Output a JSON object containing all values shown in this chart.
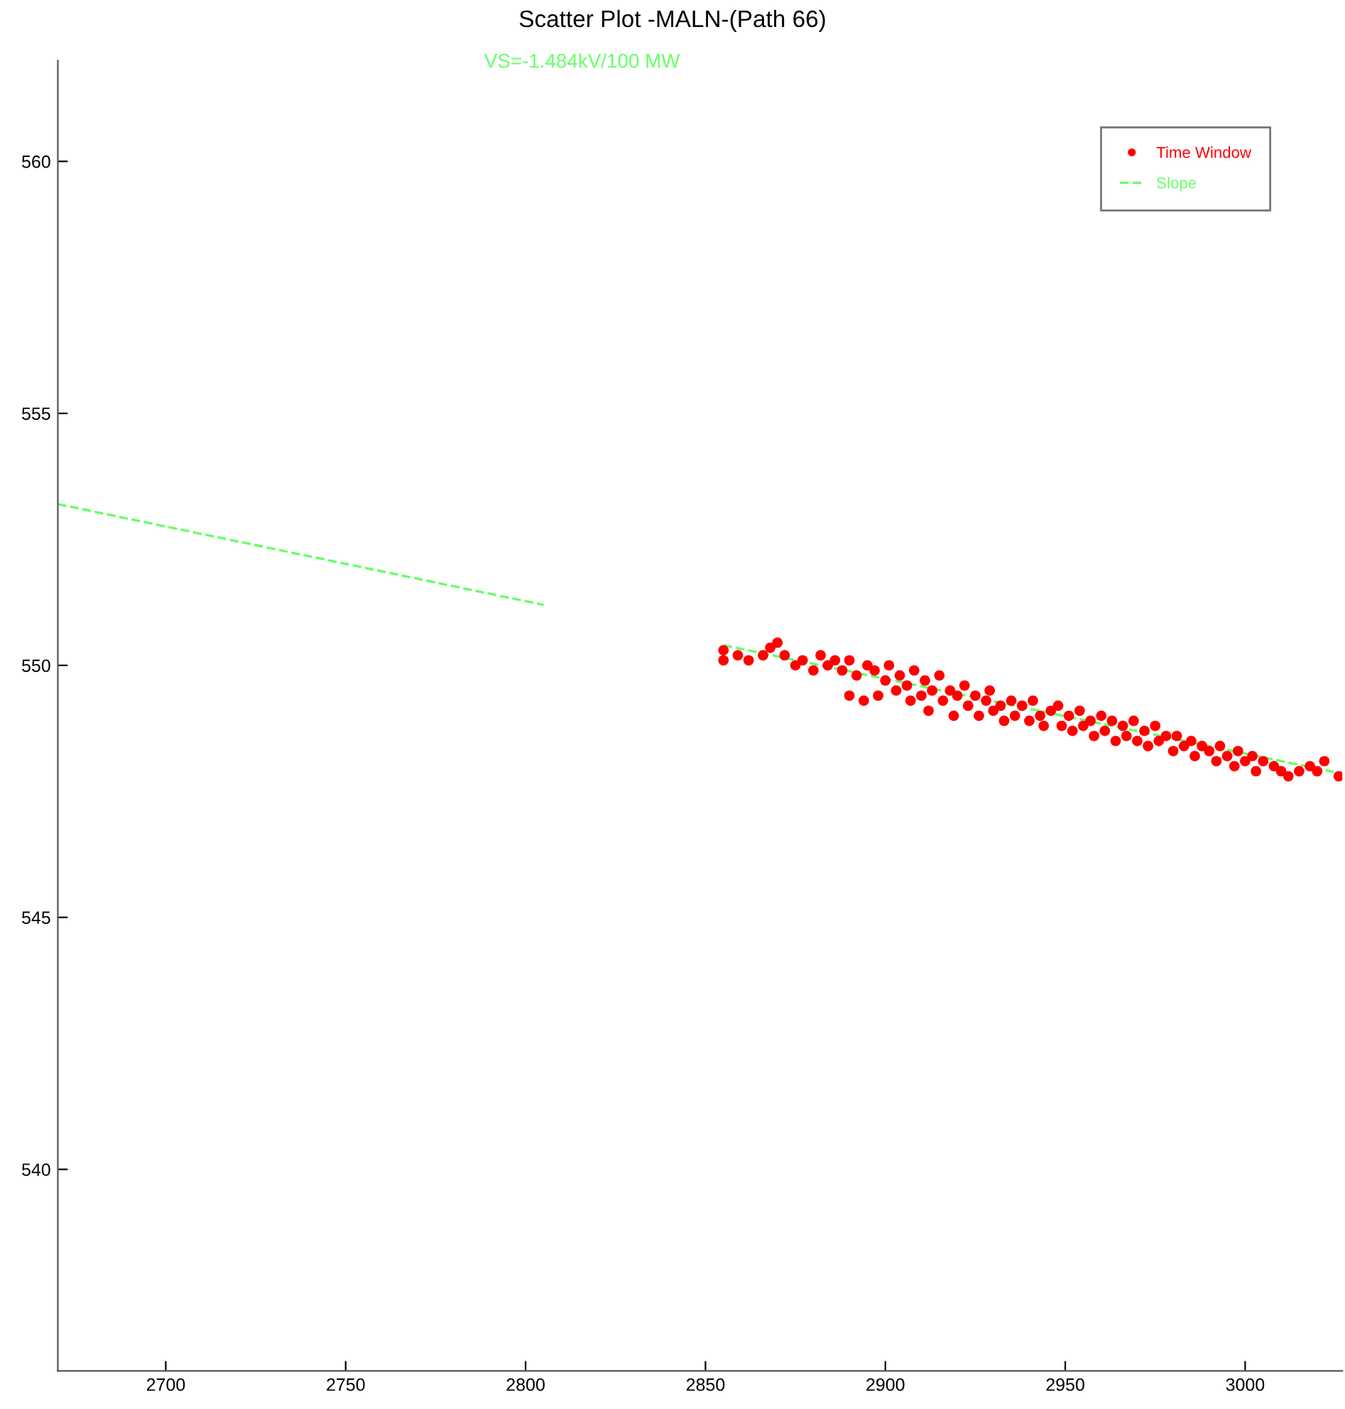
{
  "chart_data": {
    "type": "scatter",
    "title": "Scatter Plot -MALN-(Path 66)",
    "annotations": [
      "VS=-1.484kV/100 MW"
    ],
    "xlim": [
      2670,
      3027
    ],
    "ylim": [
      536,
      562
    ],
    "xticks": [
      2700,
      2750,
      2800,
      2850,
      2900,
      2950,
      3000
    ],
    "yticks": [
      540,
      545,
      550,
      555,
      560
    ],
    "grid": false,
    "legend": "top right",
    "series": [
      {
        "name": "Time Window",
        "color": "#ff0000",
        "marker": "circle",
        "x": [
          2855,
          2855,
          2859,
          2862,
          2866,
          2868,
          2870,
          2872,
          2875,
          2877,
          2880,
          2882,
          2884,
          2886,
          2888,
          2890,
          2890,
          2892,
          2894,
          2895,
          2897,
          2898,
          2900,
          2901,
          2903,
          2904,
          2906,
          2907,
          2908,
          2910,
          2911,
          2912,
          2913,
          2915,
          2916,
          2918,
          2919,
          2920,
          2922,
          2923,
          2925,
          2926,
          2928,
          2929,
          2930,
          2932,
          2933,
          2935,
          2936,
          2938,
          2940,
          2941,
          2943,
          2944,
          2946,
          2948,
          2949,
          2951,
          2952,
          2954,
          2955,
          2957,
          2958,
          2960,
          2961,
          2963,
          2964,
          2966,
          2967,
          2969,
          2970,
          2972,
          2973,
          2975,
          2976,
          2978,
          2980,
          2981,
          2983,
          2985,
          2986,
          2988,
          2990,
          2992,
          2993,
          2995,
          2997,
          2998,
          3000,
          3002,
          3003,
          3005,
          3008,
          3010,
          3012,
          3015,
          3018,
          3020,
          3022,
          3026
        ],
        "values": [
          550.3,
          550.1,
          550.2,
          550.1,
          550.2,
          550.35,
          550.45,
          550.2,
          550.0,
          550.1,
          549.9,
          550.2,
          550.0,
          550.1,
          549.9,
          549.4,
          550.1,
          549.8,
          549.3,
          550.0,
          549.9,
          549.4,
          549.7,
          550.0,
          549.5,
          549.8,
          549.6,
          549.3,
          549.9,
          549.4,
          549.7,
          549.1,
          549.5,
          549.8,
          549.3,
          549.5,
          549.0,
          549.4,
          549.6,
          549.2,
          549.4,
          549.0,
          549.3,
          549.5,
          549.1,
          549.2,
          548.9,
          549.3,
          549.0,
          549.2,
          548.9,
          549.3,
          549.0,
          548.8,
          549.1,
          549.2,
          548.8,
          549.0,
          548.7,
          549.1,
          548.8,
          548.9,
          548.6,
          549.0,
          548.7,
          548.9,
          548.5,
          548.8,
          548.6,
          548.9,
          548.5,
          548.7,
          548.4,
          548.8,
          548.5,
          548.6,
          548.3,
          548.6,
          548.4,
          548.5,
          548.2,
          548.4,
          548.3,
          548.1,
          548.4,
          548.2,
          548.0,
          548.3,
          548.1,
          548.2,
          547.9,
          548.1,
          548.0,
          547.9,
          547.8,
          547.9,
          548.0,
          547.9,
          548.1,
          547.8
        ]
      },
      {
        "name": "Slope",
        "color": "#66ff66",
        "type": "line",
        "line_style": "dashed",
        "marker": "none",
        "x": [
          2670,
          2805,
          2828,
          2855,
          3027
        ],
        "values": [
          553.2,
          551.2,
          null,
          550.4,
          547.85
        ]
      }
    ]
  }
}
